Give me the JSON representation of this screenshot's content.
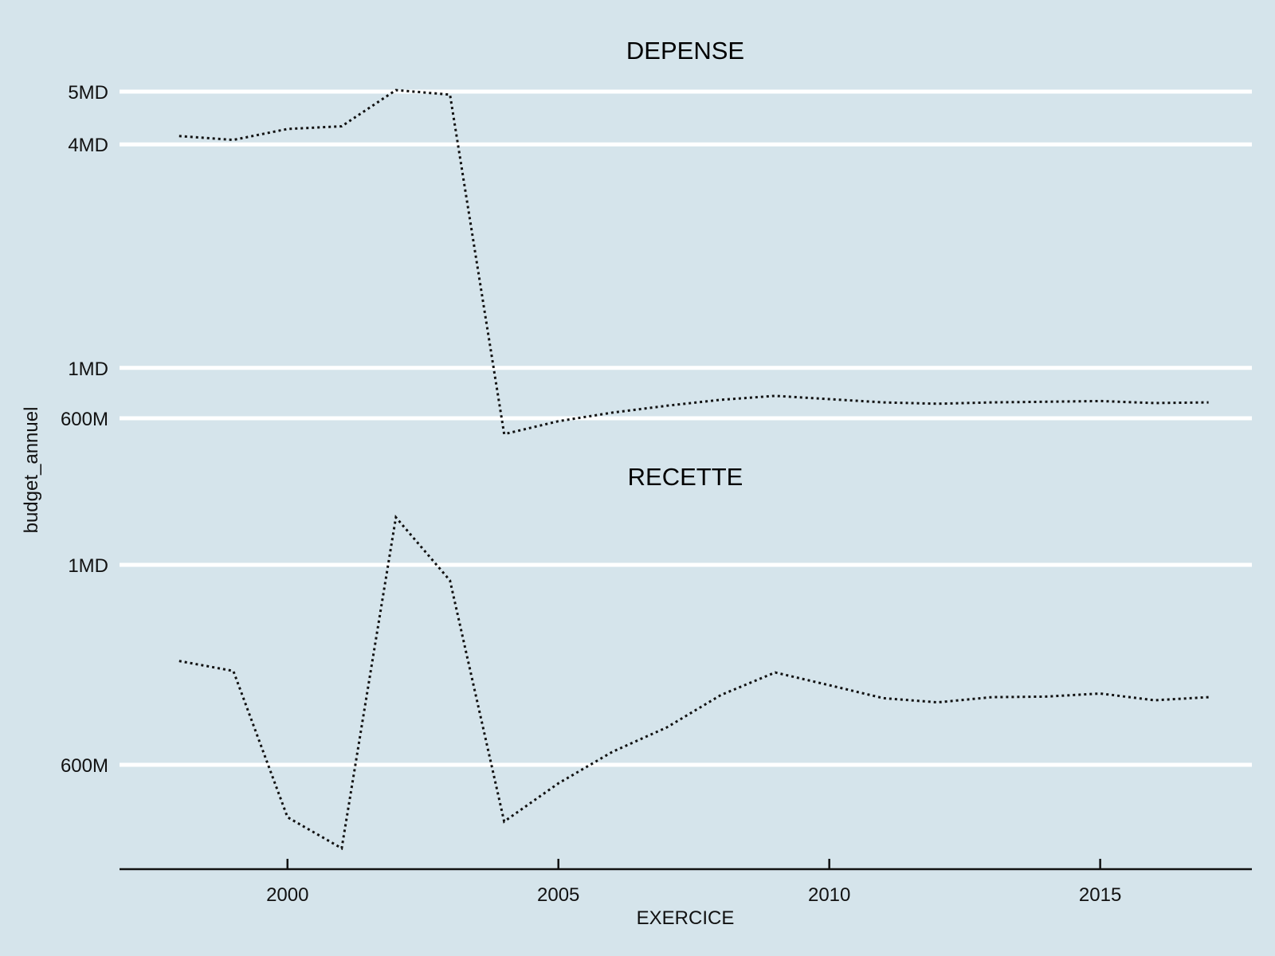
{
  "chart_data": {
    "type": "line",
    "ylabel": "budget_annuel",
    "xlabel": "EXERCICE",
    "x_ticks": [
      2000,
      2005,
      2010,
      2015
    ],
    "x_range": [
      1996.9,
      2017.8
    ],
    "line_style": "dotted",
    "background": "#d5e4eb",
    "grid": "horizontal major only",
    "panels": [
      {
        "title": "DEPENSE",
        "y_scale": "square-root",
        "y_ticks": [
          {
            "value": 600000000,
            "label": "600M"
          },
          {
            "value": 1000000000,
            "label": "1MD"
          },
          {
            "value": 4000000000,
            "label": "4MD"
          },
          {
            "value": 5000000000,
            "label": "5MD"
          }
        ],
        "series": [
          {
            "x": [
              1998,
              1999,
              2000,
              2001,
              2002,
              2003,
              2004,
              2005,
              2006,
              2007,
              2008,
              2009,
              2010,
              2011,
              2012,
              2013,
              2014,
              2015,
              2016,
              2017
            ],
            "y": [
              4150000000,
              4080000000,
              4280000000,
              4330000000,
              5030000000,
              4940000000,
              495000000,
              580000000,
              640000000,
              690000000,
              735000000,
              765000000,
              740000000,
              715000000,
              705000000,
              715000000,
              720000000,
              725000000,
              710000000,
              715000000
            ]
          }
        ]
      },
      {
        "title": "RECETTE",
        "y_scale": "square-root",
        "y_ticks": [
          {
            "value": 600000000,
            "label": "600M"
          },
          {
            "value": 1000000000,
            "label": "1MD"
          }
        ],
        "series": [
          {
            "x": [
              1998,
              1999,
              2000,
              2001,
              2002,
              2003,
              2004,
              2005,
              2006,
              2007,
              2008,
              2009,
              2010,
              2011,
              2012,
              2013,
              2014,
              2015,
              2016,
              2017
            ],
            "y": [
              795000000,
              775000000,
              512000000,
              463000000,
              1110000000,
              965000000,
              505000000,
              568000000,
              623000000,
              667000000,
              728000000,
              772000000,
              747000000,
              722000000,
              714000000,
              724000000,
              725000000,
              731000000,
              718000000,
              724000000
            ]
          }
        ]
      }
    ]
  }
}
